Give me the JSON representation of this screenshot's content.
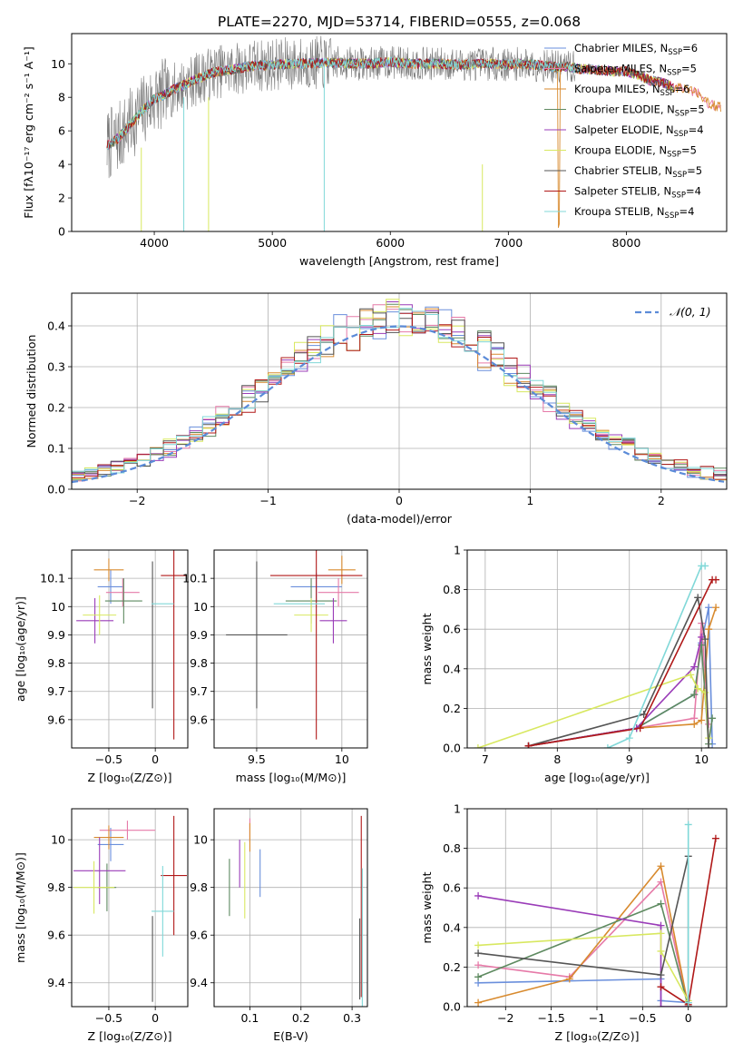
{
  "title": "PLATE=2270, MJD=53714, FIBERID=0555, z=0.068",
  "colors": {
    "series": [
      "#6a8fdc",
      "#e67aa8",
      "#d88a2e",
      "#5e8a60",
      "#9a3cb8",
      "#d8e860",
      "#555555",
      "#b01818",
      "#80d8d8"
    ],
    "gauss": "#5b8bd8",
    "spectrum_obs": "#7a7a7a"
  },
  "legend_entries": [
    {
      "base": "Chabrier MILES, N",
      "sub": "SSP",
      "val": "=6"
    },
    {
      "base": "Salpeter MILES, N",
      "sub": "SSP",
      "val": "=5"
    },
    {
      "base": "Kroupa MILES, N",
      "sub": "SSP",
      "val": "=6"
    },
    {
      "base": "Chabrier ELODIE, N",
      "sub": "SSP",
      "val": "=5"
    },
    {
      "base": "Salpeter ELODIE, N",
      "sub": "SSP",
      "val": "=4"
    },
    {
      "base": "Kroupa ELODIE, N",
      "sub": "SSP",
      "val": "=5"
    },
    {
      "base": "Chabrier STELIB, N",
      "sub": "SSP",
      "val": "=5"
    },
    {
      "base": "Salpeter STELIB, N",
      "sub": "SSP",
      "val": "=4"
    },
    {
      "base": "Kroupa STELIB, N",
      "sub": "SSP",
      "val": "=4"
    }
  ],
  "chart_data": [
    {
      "id": "spectrum",
      "type": "line",
      "xlabel": "wavelength [Angstrom, rest frame]",
      "ylabel": "Flux [fλ10⁻¹⁷ erg cm⁻² s⁻¹ A⁻¹]",
      "xlim": [
        3300,
        8850
      ],
      "ylim": [
        0,
        11.8
      ],
      "xticks": [
        4000,
        5000,
        6000,
        7000,
        8000
      ],
      "yticks": [
        0,
        2,
        4,
        6,
        8,
        10
      ],
      "grid": false,
      "legend_placement": "upper-right",
      "continuum": {
        "x": [
          3600,
          3700,
          3800,
          3900,
          4000,
          4100,
          4200,
          4300,
          4400,
          4500,
          4600,
          4700,
          4800,
          5000,
          5200,
          5400,
          5600,
          5800,
          6000,
          6200,
          6400,
          6600,
          6800,
          6900,
          7000,
          7100,
          7200,
          7300,
          7400,
          7500,
          7600,
          7700,
          7800,
          7900,
          8000,
          8100,
          8200,
          8300,
          8400,
          8500,
          8600,
          8700,
          8800
        ],
        "y": [
          5.1,
          5.6,
          6.4,
          7.2,
          7.9,
          8.2,
          8.6,
          8.9,
          9.2,
          9.5,
          9.6,
          9.7,
          9.85,
          9.95,
          10.0,
          10.05,
          10.05,
          10.0,
          10.1,
          10.0,
          10.0,
          9.95,
          10.0,
          10.0,
          9.95,
          10.0,
          9.95,
          9.9,
          9.8,
          9.85,
          9.7,
          9.65,
          9.6,
          9.55,
          9.55,
          9.3,
          9.0,
          8.9,
          8.6,
          8.5,
          8.3,
          7.6,
          7.4
        ]
      }
    },
    {
      "id": "residuals",
      "type": "histogram",
      "xlabel": "(data-model)/error",
      "ylabel": "Normed distribution",
      "xlim": [
        -2.5,
        2.5
      ],
      "ylim": [
        0,
        0.48
      ],
      "xticks": [
        -2,
        -1,
        0,
        1,
        2
      ],
      "yticks": [
        0.0,
        0.1,
        0.2,
        0.3,
        0.4
      ],
      "grid": true,
      "legend_placement": "upper-right",
      "gauss_label": "𝒩(0, 1)",
      "bin_width": 0.1
    },
    {
      "id": "age-vs-Z",
      "type": "errorbar",
      "xlabel": "Z [log₁₀(Z/Z⊙)]",
      "ylabel": "age  [log₁₀(age/yr)]",
      "xlim": [
        -0.9,
        0.35
      ],
      "ylim": [
        9.5,
        10.2
      ],
      "xticks": [
        -0.5,
        0.0
      ],
      "yticks": [
        9.6,
        9.7,
        9.8,
        9.9,
        10.0,
        10.1
      ],
      "grid": true,
      "points": [
        {
          "x": -0.48,
          "xerr": 0.14,
          "y": 10.07,
          "yerr": 0.06
        },
        {
          "x": -0.35,
          "xerr": 0.18,
          "y": 10.05,
          "yerr": 0.05
        },
        {
          "x": -0.5,
          "xerr": 0.16,
          "y": 10.13,
          "yerr": 0.04
        },
        {
          "x": -0.34,
          "xerr": 0.2,
          "y": 10.02,
          "yerr": 0.08
        },
        {
          "x": -0.65,
          "xerr": 0.2,
          "y": 9.95,
          "yerr": 0.08
        },
        {
          "x": -0.6,
          "xerr": 0.18,
          "y": 9.97,
          "yerr": 0.07
        },
        {
          "x": -0.03,
          "xerr": 0.0,
          "y": 9.9,
          "yerr": 0.26
        },
        {
          "x": 0.2,
          "xerr": 0.14,
          "y": 10.11,
          "yerr": 0.58
        },
        {
          "x": 0.08,
          "xerr": 0.12,
          "y": 10.01,
          "yerr": 0.0
        }
      ]
    },
    {
      "id": "age-vs-mass",
      "type": "errorbar",
      "xlabel": "mass [log₁₀(M/M⊙)]",
      "ylabel": "",
      "xlim": [
        9.25,
        10.15
      ],
      "ylim": [
        9.5,
        10.2
      ],
      "xticks": [
        9.5,
        10.0
      ],
      "yticks": [
        9.6,
        9.7,
        9.8,
        9.9,
        10.0,
        10.1
      ],
      "grid": true,
      "points": [
        {
          "x": 9.85,
          "xerr": 0.15,
          "y": 10.07,
          "yerr": 0.05
        },
        {
          "x": 9.98,
          "xerr": 0.12,
          "y": 10.05,
          "yerr": 0.05
        },
        {
          "x": 10.0,
          "xerr": 0.08,
          "y": 10.13,
          "yerr": 0.05
        },
        {
          "x": 9.82,
          "xerr": 0.15,
          "y": 10.02,
          "yerr": 0.08
        },
        {
          "x": 9.95,
          "xerr": 0.08,
          "y": 9.95,
          "yerr": 0.08
        },
        {
          "x": 9.82,
          "xerr": 0.1,
          "y": 9.97,
          "yerr": 0.06
        },
        {
          "x": 9.5,
          "xerr": 0.18,
          "y": 9.9,
          "yerr": 0.26
        },
        {
          "x": 9.85,
          "xerr": 0.27,
          "y": 10.11,
          "yerr": 0.58
        },
        {
          "x": 9.75,
          "xerr": 0.15,
          "y": 10.01,
          "yerr": 0.0
        }
      ]
    },
    {
      "id": "mass-weight-vs-age",
      "type": "line",
      "xlabel": "age  [log₁₀(age/yr)]",
      "ylabel": "mass weight",
      "xlim": [
        6.75,
        10.35
      ],
      "ylim": [
        0,
        1.0
      ],
      "xticks": [
        7,
        8,
        9,
        10
      ],
      "yticks": [
        0.0,
        0.2,
        0.4,
        0.6,
        0.8,
        1.0
      ],
      "grid": true,
      "series": [
        {
          "x": [
            7.6,
            9.1,
            9.9,
            10.0,
            10.1,
            10.15
          ],
          "y": [
            0.01,
            0.1,
            0.27,
            0.53,
            0.71,
            0.02
          ]
        },
        {
          "x": [
            7.6,
            9.1,
            9.9,
            10.0,
            10.1
          ],
          "y": [
            0.01,
            0.1,
            0.15,
            0.63,
            0.12
          ]
        },
        {
          "x": [
            7.6,
            9.1,
            9.9,
            10.0,
            10.1,
            10.2
          ],
          "y": [
            0.01,
            0.1,
            0.12,
            0.14,
            0.6,
            0.71
          ]
        },
        {
          "x": [
            7.6,
            9.1,
            9.9,
            10.0,
            10.1,
            10.15
          ],
          "y": [
            0.01,
            0.1,
            0.27,
            0.52,
            0.02,
            0.15
          ]
        },
        {
          "x": [
            7.6,
            9.1,
            9.9,
            10.0
          ],
          "y": [
            0.01,
            0.1,
            0.41,
            0.56
          ]
        },
        {
          "x": [
            6.9,
            9.85,
            9.95,
            10.05,
            10.1
          ],
          "y": [
            0.0,
            0.37,
            0.3,
            0.28,
            0.05
          ]
        },
        {
          "x": [
            7.6,
            9.2,
            9.95,
            10.05,
            10.1
          ],
          "y": [
            0.01,
            0.17,
            0.76,
            0.55,
            0.0
          ]
        },
        {
          "x": [
            7.6,
            9.15,
            10.15,
            10.2
          ],
          "y": [
            0.01,
            0.1,
            0.85,
            0.85
          ]
        },
        {
          "x": [
            8.7,
            9.0,
            10.0,
            10.05
          ],
          "y": [
            0.0,
            0.05,
            0.92,
            0.92
          ]
        }
      ]
    },
    {
      "id": "mass-vs-Z",
      "type": "errorbar",
      "xlabel": "Z [log₁₀(Z/Z⊙)]",
      "ylabel": "mass [log₁₀(M/M⊙)]",
      "xlim": [
        -0.9,
        0.35
      ],
      "ylim": [
        9.3,
        10.13
      ],
      "xticks": [
        -0.5,
        0.0
      ],
      "yticks": [
        9.4,
        9.6,
        9.8,
        10.0
      ],
      "grid": true,
      "points": [
        {
          "x": -0.48,
          "xerr": 0.14,
          "y": 9.98,
          "yerr": 0.07
        },
        {
          "x": -0.3,
          "xerr": 0.3,
          "y": 10.04,
          "yerr": 0.04
        },
        {
          "x": -0.5,
          "xerr": 0.16,
          "y": 10.01,
          "yerr": 0.05
        },
        {
          "x": -0.52,
          "xerr": 0.1,
          "y": 9.8,
          "yerr": 0.1
        },
        {
          "x": -0.6,
          "xerr": 0.28,
          "y": 9.87,
          "yerr": 0.14
        },
        {
          "x": -0.66,
          "xerr": 0.22,
          "y": 9.8,
          "yerr": 0.11
        },
        {
          "x": -0.03,
          "xerr": 0.0,
          "y": 9.5,
          "yerr": 0.18
        },
        {
          "x": 0.2,
          "xerr": 0.14,
          "y": 9.85,
          "yerr": 0.25
        },
        {
          "x": 0.08,
          "xerr": 0.12,
          "y": 9.7,
          "yerr": 0.19
        }
      ]
    },
    {
      "id": "mass-vs-EBV",
      "type": "errorbar",
      "xlabel": "E(B-V)",
      "ylabel": "",
      "xlim": [
        0.03,
        0.33
      ],
      "ylim": [
        9.3,
        10.13
      ],
      "xticks": [
        0.1,
        0.2,
        0.3
      ],
      "yticks": [
        9.4,
        9.6,
        9.8,
        10.0
      ],
      "grid": true,
      "points": [
        {
          "x": 0.12,
          "xerr": 0.0,
          "y": 9.86,
          "yerr": 0.1
        },
        {
          "x": 0.1,
          "xerr": 0.0,
          "y": 10.04,
          "yerr": 0.05
        },
        {
          "x": 0.1,
          "xerr": 0.0,
          "y": 10.01,
          "yerr": 0.06
        },
        {
          "x": 0.06,
          "xerr": 0.0,
          "y": 9.8,
          "yerr": 0.12
        },
        {
          "x": 0.08,
          "xerr": 0.0,
          "y": 9.9,
          "yerr": 0.1
        },
        {
          "x": 0.09,
          "xerr": 0.0,
          "y": 9.83,
          "yerr": 0.16
        },
        {
          "x": 0.315,
          "xerr": 0.0,
          "y": 9.5,
          "yerr": 0.17
        },
        {
          "x": 0.318,
          "xerr": 0.0,
          "y": 9.72,
          "yerr": 0.38
        },
        {
          "x": 0.32,
          "xerr": 0.0,
          "y": 9.55,
          "yerr": 0.33
        }
      ]
    },
    {
      "id": "mass-weight-vs-Z",
      "type": "line",
      "xlabel": "Z [log₁₀(Z/Z⊙)]",
      "ylabel": "mass weight",
      "xlim": [
        -2.42,
        0.42
      ],
      "ylim": [
        0,
        1.0
      ],
      "xticks": [
        -2.0,
        -1.5,
        -1.0,
        -0.5,
        0.0
      ],
      "yticks": [
        0.0,
        0.2,
        0.4,
        0.6,
        0.8,
        1.0
      ],
      "grid": true,
      "series": [
        {
          "x": [
            -2.3,
            -0.3,
            -0.3,
            0.0
          ],
          "y": [
            0.12,
            0.14,
            0.03,
            0.02
          ]
        },
        {
          "x": [
            -2.3,
            -1.3,
            -0.3,
            0.0
          ],
          "y": [
            0.21,
            0.15,
            0.63,
            0.0
          ]
        },
        {
          "x": [
            -2.3,
            -1.3,
            -0.3,
            0.0
          ],
          "y": [
            0.02,
            0.14,
            0.71,
            0.0
          ]
        },
        {
          "x": [
            -2.3,
            -0.3,
            0.0
          ],
          "y": [
            0.15,
            0.52,
            0.0
          ]
        },
        {
          "x": [
            -2.3,
            -0.3,
            -0.3,
            0.0
          ],
          "y": [
            0.56,
            0.41,
            0.0,
            0.0
          ]
        },
        {
          "x": [
            -2.3,
            -0.3,
            -0.3,
            0.0
          ],
          "y": [
            0.31,
            0.37,
            0.28,
            0.03
          ]
        },
        {
          "x": [
            -2.3,
            -0.3,
            0.0,
            0.0
          ],
          "y": [
            0.27,
            0.16,
            0.76,
            0.0
          ]
        },
        {
          "x": [
            -0.3,
            0.0,
            0.3
          ],
          "y": [
            0.1,
            0.01,
            0.85
          ]
        },
        {
          "x": [
            0.0,
            0.0
          ],
          "y": [
            0.02,
            0.92
          ]
        }
      ]
    }
  ]
}
